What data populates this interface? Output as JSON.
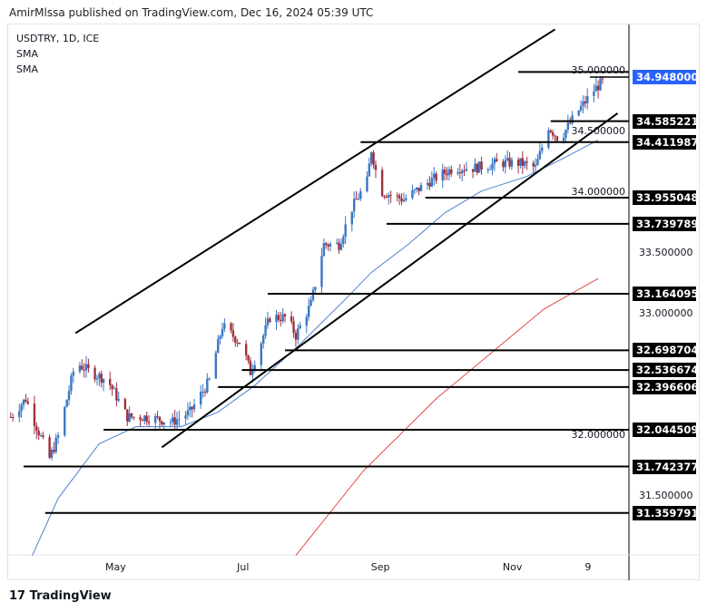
{
  "header": {
    "published": "AmirMlssa published on TradingView.com, Dec 16, 2024 05:39 UTC"
  },
  "legend": {
    "symbol": "USDTRY, 1D, ICE",
    "ind1": "SMA",
    "ind2": "SMA"
  },
  "branding": {
    "logo_text": "TradingView"
  },
  "colors": {
    "up": "#3a76c4",
    "down": "#a0303f",
    "sma_fast": "#4f7fcf",
    "sma_slow": "#e04848",
    "last_price": "#2962ff",
    "lines": "#000000"
  },
  "chart_data": {
    "type": "candlestick",
    "symbol": "USDTRY",
    "interval": "1D",
    "y_ticks": [
      "35.000000",
      "34.500000",
      "34.000000",
      "33.500000",
      "33.000000",
      "32.000000",
      "31.500000"
    ],
    "x_ticks": [
      {
        "label": "May",
        "date": "2024-05-01"
      },
      {
        "label": "Jul",
        "date": "2024-07-01"
      },
      {
        "label": "Sep",
        "date": "2024-09-01"
      },
      {
        "label": "Nov",
        "date": "2024-11-01"
      },
      {
        "label": "9",
        "date": "2024-12-09"
      }
    ],
    "last_price": "34.948000",
    "close_path": [
      [
        "2024-03-14",
        32.15
      ],
      [
        "2024-03-21",
        32.3
      ],
      [
        "2024-03-26",
        32.07
      ],
      [
        "2024-04-01",
        31.81
      ],
      [
        "2024-04-05",
        31.99
      ],
      [
        "2024-04-13",
        32.6
      ],
      [
        "2024-04-20",
        32.52
      ],
      [
        "2024-04-28",
        32.45
      ],
      [
        "2024-05-07",
        32.15
      ],
      [
        "2024-05-15",
        32.15
      ],
      [
        "2024-05-28",
        32.11
      ],
      [
        "2024-06-05",
        32.19
      ],
      [
        "2024-06-14",
        32.45
      ],
      [
        "2024-06-20",
        32.9
      ],
      [
        "2024-06-29",
        32.75
      ],
      [
        "2024-07-03",
        32.52
      ],
      [
        "2024-07-12",
        32.97
      ],
      [
        "2024-07-20",
        32.97
      ],
      [
        "2024-07-24",
        32.82
      ],
      [
        "2024-07-31",
        33.08
      ],
      [
        "2024-08-06",
        33.57
      ],
      [
        "2024-08-13",
        33.57
      ],
      [
        "2024-08-19",
        33.87
      ],
      [
        "2024-08-26",
        34.09
      ],
      [
        "2024-08-28",
        34.35
      ],
      [
        "2024-09-01",
        34.01
      ],
      [
        "2024-09-12",
        33.94
      ],
      [
        "2024-09-24",
        34.09
      ],
      [
        "2024-10-05",
        34.2
      ],
      [
        "2024-10-15",
        34.2
      ],
      [
        "2024-10-26",
        34.24
      ],
      [
        "2024-11-05",
        34.24
      ],
      [
        "2024-11-12",
        34.2
      ],
      [
        "2024-11-18",
        34.54
      ],
      [
        "2024-11-23",
        34.43
      ],
      [
        "2024-12-01",
        34.65
      ],
      [
        "2024-12-09",
        34.84
      ],
      [
        "2024-12-13",
        34.91
      ]
    ],
    "sma_fast": [
      [
        "2024-03-24",
        31.01
      ],
      [
        "2024-04-05",
        31.48
      ],
      [
        "2024-04-24",
        31.93
      ],
      [
        "2024-05-11",
        32.07
      ],
      [
        "2024-06-01",
        32.07
      ],
      [
        "2024-06-18",
        32.19
      ],
      [
        "2024-07-05",
        32.41
      ],
      [
        "2024-07-26",
        32.75
      ],
      [
        "2024-08-16",
        33.12
      ],
      [
        "2024-08-28",
        33.34
      ],
      [
        "2024-09-14",
        33.57
      ],
      [
        "2024-10-01",
        33.83
      ],
      [
        "2024-10-18",
        34.01
      ],
      [
        "2024-11-08",
        34.13
      ],
      [
        "2024-11-25",
        34.28
      ],
      [
        "2024-12-11",
        34.43
      ]
    ],
    "sma_slow": [
      [
        "2024-07-24",
        31.01
      ],
      [
        "2024-08-24",
        31.7
      ],
      [
        "2024-09-27",
        32.3
      ],
      [
        "2024-10-22",
        32.67
      ],
      [
        "2024-11-16",
        33.04
      ],
      [
        "2024-12-11",
        33.29
      ]
    ],
    "trend_lines": [
      {
        "from": [
          "2024-04-13",
          32.84
        ],
        "to": [
          "2024-11-21",
          35.34
        ]
      },
      {
        "from": [
          "2024-05-23",
          31.9
        ],
        "to": [
          "2024-12-20",
          34.65
        ]
      }
    ],
    "levels": [
      {
        "price": 34.99,
        "from": "2024-11-04",
        "label": ""
      },
      {
        "price": 34.585221,
        "from": "2024-11-19",
        "label": "34.585221"
      },
      {
        "price": 34.411987,
        "from": "2024-08-23",
        "label": "34.411987"
      },
      {
        "price": 33.955048,
        "from": "2024-09-22",
        "label": "33.955048"
      },
      {
        "price": 33.739789,
        "from": "2024-09-04",
        "label": "33.739789"
      },
      {
        "price": 33.164095,
        "from": "2024-07-11",
        "label": "33.164095"
      },
      {
        "price": 32.698704,
        "from": "2024-07-19",
        "label": "32.698704"
      },
      {
        "price": 32.536674,
        "from": "2024-06-29",
        "label": "32.536674"
      },
      {
        "price": 32.396606,
        "from": "2024-06-18",
        "label": "32.396606"
      },
      {
        "price": 32.044509,
        "from": "2024-04-26",
        "label": "32.044509"
      },
      {
        "price": 31.742377,
        "from": "2024-03-20",
        "label": "31.742377"
      },
      {
        "price": 31.359791,
        "from": "2024-03-30",
        "label": "31.359791"
      }
    ]
  }
}
